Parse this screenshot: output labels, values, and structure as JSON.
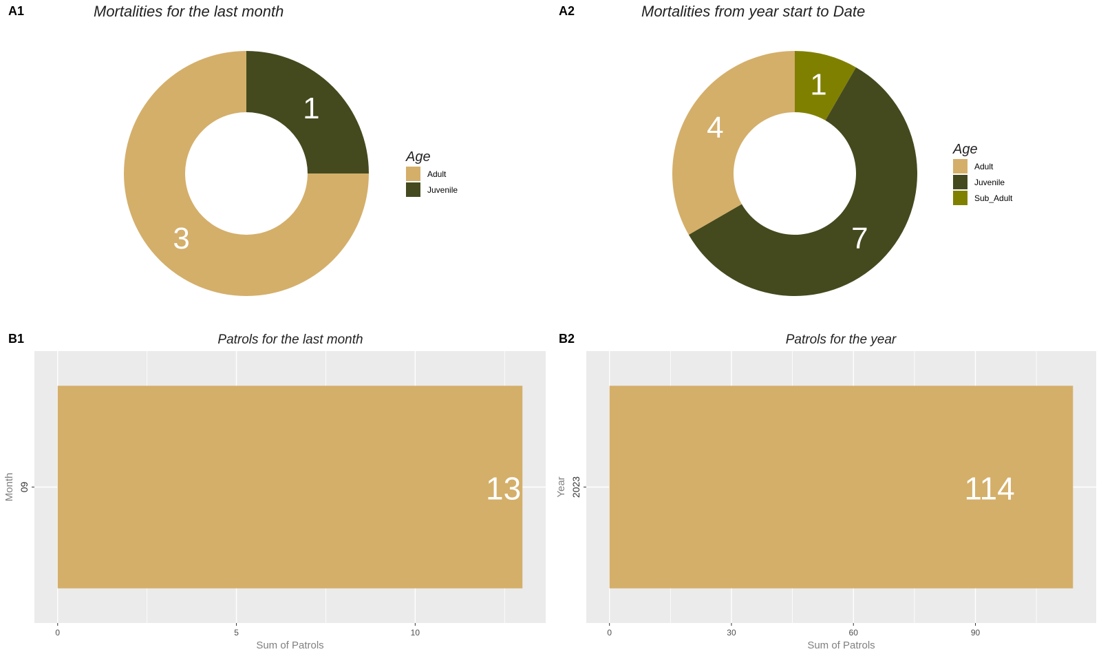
{
  "colors": {
    "adult": "#D4AF6A",
    "juvenile": "#444A1E",
    "sub_adult": "#808000",
    "panel_bg": "#EBEBEB",
    "grid": "#FFFFFF",
    "axis_text": "#4D4D4D",
    "axis_title": "#808080"
  },
  "chart_data": [
    {
      "id": "A1",
      "tag": "A1",
      "type": "pie",
      "donut": true,
      "title": "Mortalities for the last month",
      "legend_title": "Age",
      "legend_position": "right",
      "slices": [
        {
          "label": "Juvenile",
          "value": 1,
          "color": "#444A1E"
        },
        {
          "label": "Adult",
          "value": 3,
          "color": "#D4AF6A"
        }
      ],
      "legend": [
        "Adult",
        "Juvenile"
      ]
    },
    {
      "id": "A2",
      "tag": "A2",
      "type": "pie",
      "donut": true,
      "title": "Mortalities from year start to Date",
      "legend_title": "Age",
      "legend_position": "right",
      "slices": [
        {
          "label": "Sub_Adult",
          "value": 1,
          "color": "#808000"
        },
        {
          "label": "Juvenile",
          "value": 7,
          "color": "#444A1E"
        },
        {
          "label": "Adult",
          "value": 4,
          "color": "#D4AF6A"
        }
      ],
      "legend": [
        "Adult",
        "Juvenile",
        "Sub_Adult"
      ]
    },
    {
      "id": "B1",
      "tag": "B1",
      "type": "bar",
      "orientation": "horizontal",
      "title": "Patrols for the last month",
      "categories": [
        "09"
      ],
      "values": [
        13
      ],
      "xlabel": "Sum of Patrols",
      "ylabel": "Month",
      "xlim": [
        -0.65,
        13.65
      ],
      "xticks": [
        0,
        5,
        10
      ],
      "grid": true
    },
    {
      "id": "B2",
      "tag": "B2",
      "type": "bar",
      "orientation": "horizontal",
      "title": "Patrols for the year",
      "categories": [
        "2023"
      ],
      "values": [
        114
      ],
      "xlabel": "Sum of Patrols",
      "ylabel": "Year",
      "xlim": [
        -5.7,
        119.7
      ],
      "xticks": [
        0,
        30,
        60,
        90
      ],
      "grid": true
    }
  ]
}
